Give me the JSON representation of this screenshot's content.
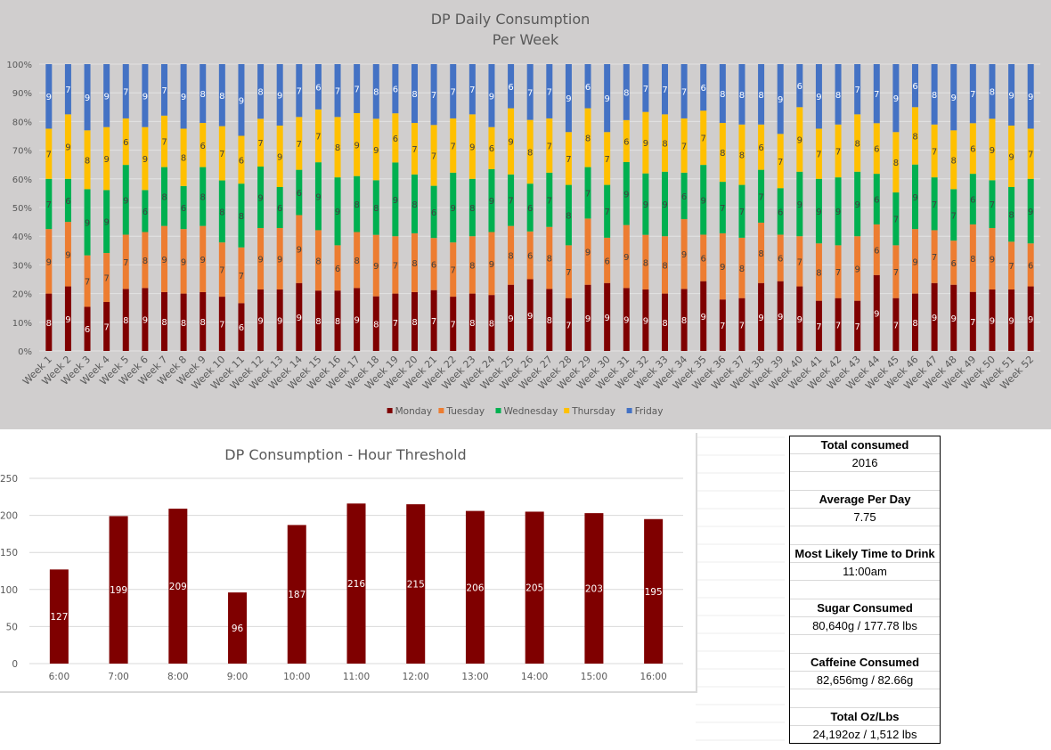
{
  "chart_data": [
    {
      "type": "bar",
      "subtype": "100% stacked column",
      "title": "DP Daily Consumption",
      "subtitle": "Per Week",
      "xlabel": "",
      "ylabel": "",
      "ylim": [
        0,
        100
      ],
      "y_ticks": [
        "0%",
        "10%",
        "20%",
        "30%",
        "40%",
        "50%",
        "60%",
        "70%",
        "80%",
        "90%",
        "100%"
      ],
      "grid": true,
      "legend": "bottom",
      "categories": [
        "Week 1",
        "Week 2",
        "Week 3",
        "Week 4",
        "Week 5",
        "Week 6",
        "Week 7",
        "Week 8",
        "Week 9",
        "Week 10",
        "Week 11",
        "Week 12",
        "Week 13",
        "Week 14",
        "Week 15",
        "Week 16",
        "Week 17",
        "Week 18",
        "Week 19",
        "Week 20",
        "Week 21",
        "Week 22",
        "Week 23",
        "Week 24",
        "Week 25",
        "Week 26",
        "Week 27",
        "Week 28",
        "Week 29",
        "Week 30",
        "Week 31",
        "Week 32",
        "Week 33",
        "Week 34",
        "Week 35",
        "Week 36",
        "Week 37",
        "Week 38",
        "Week 39",
        "Week 40",
        "Week 41",
        "Week 42",
        "Week 43",
        "Week 44",
        "Week 45",
        "Week 46",
        "Week 47",
        "Week 48",
        "Week 49",
        "Week 50",
        "Week 51",
        "Week 52"
      ],
      "series": [
        {
          "name": "Monday",
          "color": "#7f0000",
          "label_color": "#ffffff",
          "values": [
            8,
            9,
            6,
            7,
            8,
            9,
            8,
            8,
            8,
            7,
            6,
            9,
            9,
            9,
            8,
            8,
            9,
            8,
            7,
            8,
            7,
            7,
            8,
            8,
            9,
            9,
            8,
            7,
            9,
            9,
            9,
            9,
            8,
            8,
            9,
            7,
            7,
            9,
            9,
            9,
            7,
            7,
            7,
            9,
            7,
            8,
            9,
            9,
            7,
            9,
            9,
            9
          ]
        },
        {
          "name": "Tuesday",
          "color": "#ed7d31",
          "label_color": "#404040",
          "values": [
            9,
            9,
            7,
            7,
            7,
            8,
            9,
            9,
            9,
            7,
            7,
            9,
            9,
            9,
            8,
            6,
            8,
            9,
            7,
            8,
            6,
            7,
            8,
            9,
            8,
            6,
            8,
            7,
            9,
            6,
            9,
            8,
            8,
            9,
            6,
            9,
            8,
            8,
            6,
            7,
            8,
            7,
            9,
            6,
            7,
            9,
            7,
            6,
            8,
            9,
            7,
            6
          ]
        },
        {
          "name": "Wednesday",
          "color": "#00b050",
          "label_color": "#404040",
          "values": [
            7,
            6,
            9,
            9,
            9,
            6,
            8,
            6,
            8,
            8,
            8,
            9,
            6,
            6,
            9,
            9,
            8,
            8,
            9,
            8,
            6,
            9,
            8,
            9,
            7,
            6,
            7,
            8,
            7,
            7,
            9,
            9,
            9,
            6,
            9,
            7,
            7,
            7,
            6,
            9,
            9,
            9,
            9,
            6,
            7,
            9,
            7,
            7,
            6,
            7,
            8,
            9
          ]
        },
        {
          "name": "Thursday",
          "color": "#ffc000",
          "label_color": "#404040",
          "values": [
            7,
            9,
            8,
            9,
            6,
            9,
            7,
            8,
            6,
            7,
            6,
            7,
            9,
            7,
            7,
            8,
            9,
            9,
            6,
            7,
            7,
            7,
            9,
            6,
            9,
            8,
            7,
            7,
            8,
            7,
            6,
            9,
            8,
            7,
            7,
            8,
            8,
            6,
            7,
            9,
            7,
            7,
            8,
            6,
            8,
            8,
            7,
            8,
            6,
            9,
            9,
            7
          ]
        },
        {
          "name": "Friday",
          "color": "#4472c4",
          "label_color": "#ffffff",
          "values": [
            9,
            7,
            9,
            9,
            7,
            9,
            7,
            9,
            8,
            8,
            9,
            8,
            9,
            7,
            6,
            7,
            7,
            8,
            6,
            8,
            7,
            7,
            7,
            9,
            6,
            7,
            7,
            9,
            6,
            9,
            8,
            7,
            7,
            7,
            6,
            8,
            8,
            8,
            9,
            6,
            9,
            8,
            7,
            7,
            9,
            6,
            8,
            9,
            7,
            8,
            9,
            9
          ]
        }
      ]
    },
    {
      "type": "bar",
      "title": "DP Consumption - Hour Threshold",
      "xlabel": "",
      "ylabel": "",
      "ylim": [
        0,
        250
      ],
      "y_ticks": [
        0,
        50,
        100,
        150,
        200,
        250
      ],
      "grid": true,
      "legend": "none",
      "color": "#7f0000",
      "categories": [
        "6:00",
        "7:00",
        "8:00",
        "9:00",
        "10:00",
        "11:00",
        "12:00",
        "13:00",
        "14:00",
        "15:00",
        "16:00"
      ],
      "values": [
        127,
        199,
        209,
        96,
        187,
        216,
        215,
        206,
        205,
        203,
        195
      ]
    }
  ],
  "stats": [
    {
      "label": "Total consumed",
      "value": "2016"
    },
    {
      "label": "Average Per Day",
      "value": "7.75"
    },
    {
      "label": "Most Likely Time to Drink",
      "value": "11:00am"
    },
    {
      "label": "Sugar Consumed",
      "value": "80,640g / 177.78 lbs"
    },
    {
      "label": "Caffeine Consumed",
      "value": "82,656mg / 82.66g"
    },
    {
      "label": "Total Oz/Lbs",
      "value": "24,192oz / 1,512 lbs"
    }
  ]
}
